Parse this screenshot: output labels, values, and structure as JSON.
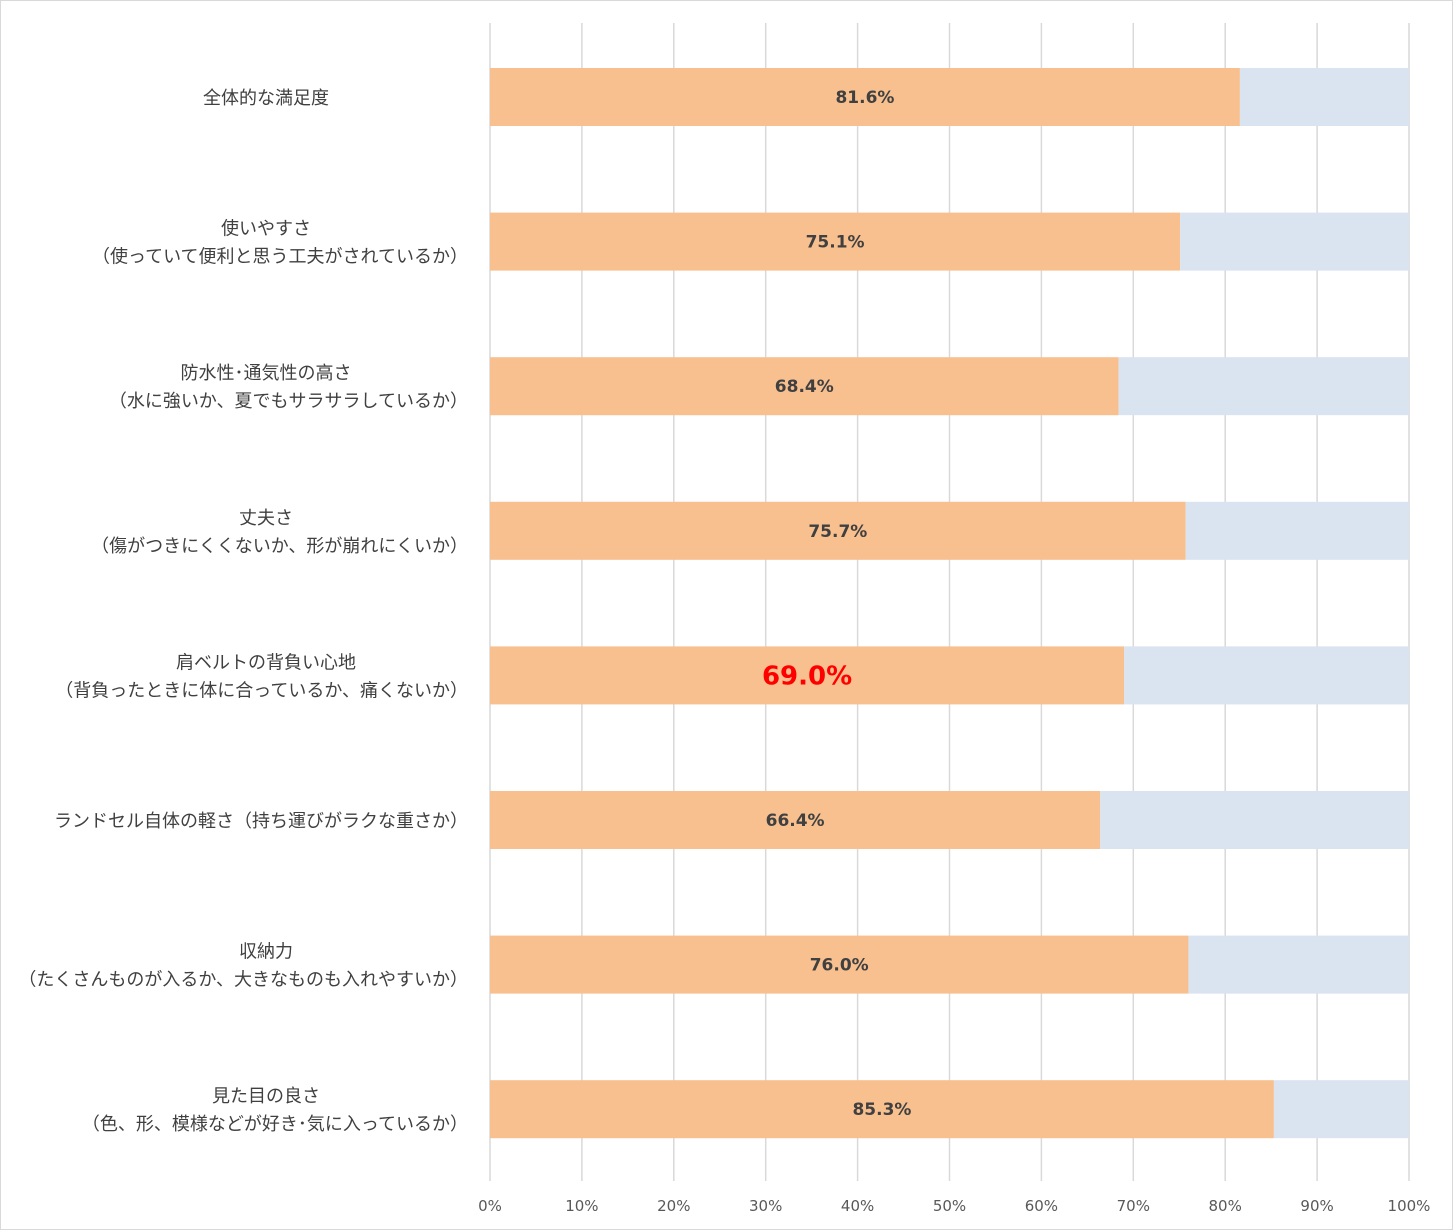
{
  "chart_data": {
    "type": "bar",
    "orientation": "horizontal",
    "stacked_to_100": true,
    "categories": [
      [
        "全体的な満足度"
      ],
      [
        "使いやすさ",
        "（使っていて便利と思う工夫がされているか）"
      ],
      [
        "防水性･通気性の高さ",
        "（水に強いか、夏でもサラサラしているか）"
      ],
      [
        "丈夫さ",
        "（傷がつきにくくないか、形が崩れにくいか）"
      ],
      [
        "肩ベルトの背負い心地",
        "（背負ったときに体に合っているか、痛くないか）"
      ],
      [
        "ランドセル自体の軽さ（持ち運びがラクな重さか）"
      ],
      [
        "収納力",
        "（たくさんものが入るか、大きなものも入れやすいか）"
      ],
      [
        "見た目の良さ",
        "（色、形、模様などが好き･気に入っているか）"
      ]
    ],
    "series": [
      {
        "values": [
          81.6,
          75.1,
          68.4,
          75.7,
          69.0,
          66.4,
          76.0,
          85.3
        ],
        "color": "#f8c08f"
      },
      {
        "values": [
          18.4,
          24.9,
          31.6,
          24.3,
          31.0,
          33.6,
          24.0,
          14.7
        ],
        "color": "#dae3f0"
      }
    ],
    "data_labels": [
      "81.6%",
      "75.1%",
      "68.4%",
      "75.7%",
      "69.0%",
      "66.4%",
      "76.0%",
      "85.3%"
    ],
    "highlight_index": 4,
    "highlight_color": "#ff0000",
    "x_ticks": [
      "0%",
      "10%",
      "20%",
      "30%",
      "40%",
      "50%",
      "60%",
      "70%",
      "80%",
      "90%",
      "100%"
    ],
    "xlim": [
      0,
      100
    ],
    "grid": true,
    "gridline_color": "#d9d9d9",
    "title": "",
    "xlabel": "",
    "ylabel": ""
  }
}
